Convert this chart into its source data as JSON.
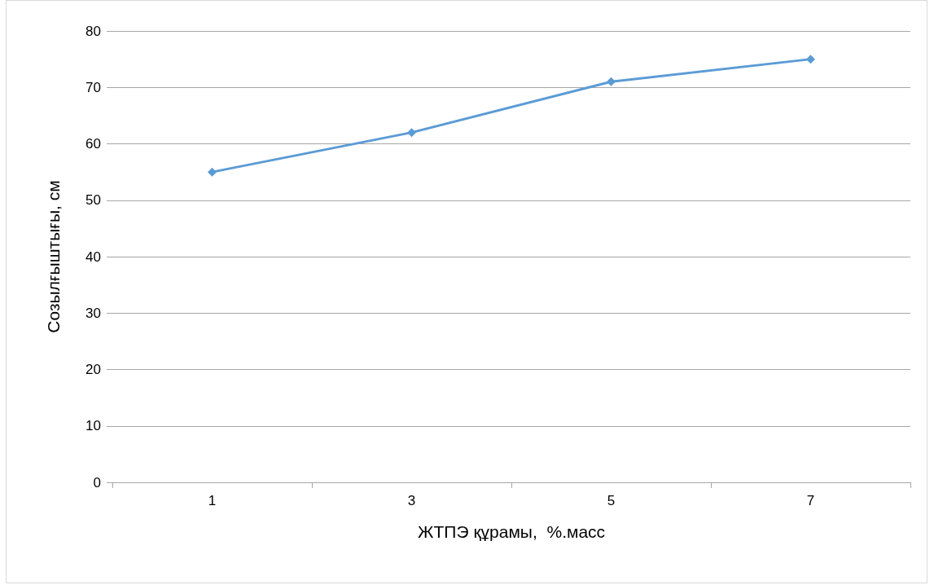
{
  "chart_data": {
    "type": "line",
    "xlabel": "ЖТПЭ құрамы,  %.масс",
    "ylabel": "Созылғыштығы, см",
    "categories": [
      "1",
      "3",
      "5",
      "7"
    ],
    "series": [
      {
        "color": "#5b9bd5",
        "values": [
          55,
          62,
          71,
          75
        ]
      }
    ],
    "ylim": [
      0,
      80
    ],
    "yticks": [
      0,
      10,
      20,
      30,
      40,
      50,
      60,
      70,
      80
    ],
    "grid": "y",
    "marker": "diamond",
    "line_style": "solid"
  }
}
